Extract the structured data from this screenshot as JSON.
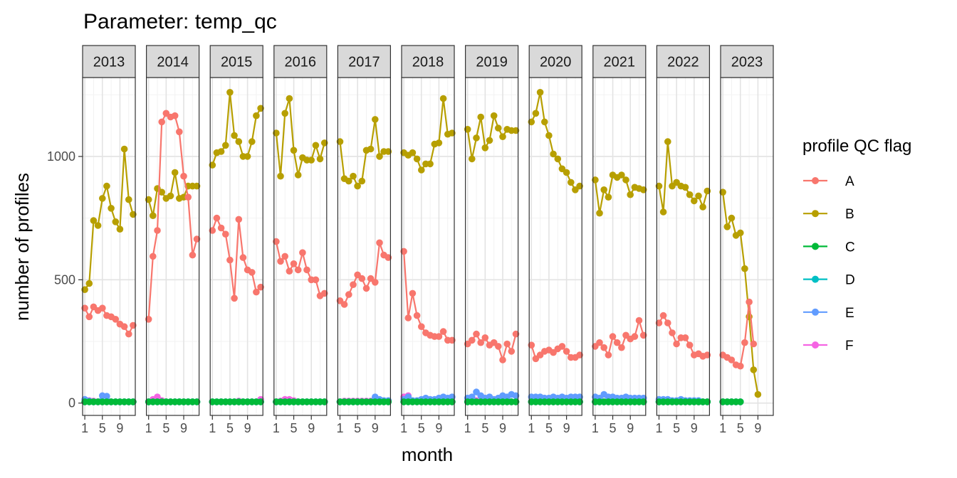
{
  "chart_data": {
    "type": "line",
    "title": "Parameter:  temp_qc",
    "xlabel": "month",
    "ylabel": "number of profiles",
    "ylim": [
      -50,
      1320
    ],
    "xlim": [
      0.5,
      12.5
    ],
    "y_ticks": [
      0,
      500,
      1000
    ],
    "y_tick_labels": [
      "0",
      "500",
      "1000"
    ],
    "x_ticks": [
      1,
      5,
      9
    ],
    "x_tick_labels": [
      "1",
      "5",
      "9"
    ],
    "legend": {
      "title": "profile QC flag",
      "position": "right",
      "entries": [
        "A",
        "B",
        "C",
        "D",
        "E",
        "F"
      ]
    },
    "colors": {
      "A": "#F8766D",
      "B": "#B79F00",
      "C": "#00BA38",
      "D": "#00BFC4",
      "E": "#619CFF",
      "F": "#F564E3"
    },
    "panels": [
      {
        "year": "2013",
        "series": {
          "A": [
            385,
            350,
            390,
            375,
            385,
            355,
            350,
            340,
            320,
            310,
            280,
            315
          ],
          "B": [
            460,
            485,
            740,
            720,
            830,
            880,
            790,
            735,
            705,
            1030,
            825,
            765
          ],
          "C": [
            5,
            5,
            5,
            5,
            5,
            5,
            5,
            5,
            5,
            5,
            5,
            5
          ],
          "D": [
            5,
            5,
            5,
            5,
            5,
            5,
            5,
            5,
            5,
            5,
            5,
            5
          ],
          "E": [
            15,
            8,
            5,
            5,
            30,
            28,
            5,
            5,
            5,
            5,
            5,
            5
          ],
          "F": [
            5,
            10,
            8,
            5,
            5,
            5,
            5,
            5,
            5,
            5,
            5,
            5
          ]
        }
      },
      {
        "year": "2014",
        "series": {
          "A": [
            340,
            595,
            700,
            1140,
            1175,
            1160,
            1165,
            1100,
            920,
            835,
            600,
            665
          ],
          "B": [
            825,
            760,
            870,
            855,
            830,
            840,
            935,
            830,
            835,
            880,
            880,
            880
          ],
          "C": [
            5,
            5,
            5,
            5,
            5,
            5,
            5,
            5,
            5,
            5,
            5,
            5
          ],
          "D": [
            5,
            5,
            5,
            5,
            5,
            5,
            5,
            5,
            5,
            5,
            5,
            5
          ],
          "E": [
            5,
            5,
            5,
            5,
            5,
            5,
            5,
            5,
            5,
            5,
            5,
            5
          ],
          "F": [
            5,
            15,
            25,
            10,
            5,
            5,
            5,
            5,
            5,
            5,
            5,
            5
          ]
        }
      },
      {
        "year": "2015",
        "series": {
          "A": [
            700,
            750,
            710,
            685,
            580,
            425,
            745,
            590,
            540,
            530,
            450,
            470
          ],
          "B": [
            965,
            1015,
            1020,
            1045,
            1260,
            1085,
            1060,
            1000,
            1000,
            1060,
            1165,
            1195
          ],
          "C": [
            5,
            5,
            5,
            5,
            5,
            5,
            5,
            5,
            5,
            5,
            5,
            5
          ],
          "D": [
            5,
            5,
            5,
            5,
            5,
            5,
            5,
            5,
            5,
            5,
            5,
            5
          ],
          "E": [
            5,
            5,
            5,
            5,
            5,
            5,
            5,
            5,
            5,
            5,
            5,
            5
          ],
          "F": [
            5,
            5,
            5,
            5,
            5,
            5,
            8,
            5,
            5,
            5,
            5,
            15
          ]
        }
      },
      {
        "year": "2016",
        "series": {
          "A": [
            655,
            575,
            595,
            535,
            565,
            540,
            610,
            540,
            500,
            500,
            435,
            445
          ],
          "B": [
            1095,
            920,
            1175,
            1235,
            1025,
            925,
            995,
            985,
            985,
            1045,
            990,
            1055
          ],
          "C": [
            5,
            5,
            5,
            5,
            5,
            5,
            5,
            5,
            5,
            5,
            5,
            5
          ],
          "D": [
            5,
            5,
            5,
            5,
            5,
            5,
            5,
            5,
            5,
            5,
            5,
            5
          ],
          "E": [
            5,
            5,
            5,
            5,
            5,
            5,
            5,
            5,
            5,
            5,
            5,
            5
          ],
          "F": [
            5,
            8,
            15,
            15,
            10,
            5,
            5,
            5,
            5,
            5,
            5,
            5
          ]
        }
      },
      {
        "year": "2017",
        "series": {
          "A": [
            415,
            400,
            440,
            480,
            520,
            505,
            465,
            505,
            490,
            650,
            600,
            590
          ],
          "B": [
            1060,
            910,
            900,
            920,
            880,
            900,
            1025,
            1030,
            1150,
            1000,
            1020,
            1020
          ],
          "C": [
            5,
            5,
            5,
            5,
            5,
            5,
            5,
            5,
            5,
            5,
            5,
            5
          ],
          "D": [
            5,
            5,
            5,
            5,
            5,
            5,
            5,
            5,
            5,
            5,
            5,
            5
          ],
          "E": [
            5,
            5,
            5,
            5,
            5,
            5,
            5,
            5,
            25,
            15,
            10,
            10
          ],
          "F": [
            5,
            8,
            8,
            8,
            8,
            8,
            8,
            8,
            8,
            8,
            8,
            8
          ]
        }
      },
      {
        "year": "2018",
        "series": {
          "A": [
            615,
            345,
            445,
            355,
            310,
            285,
            275,
            270,
            270,
            290,
            255,
            255
          ],
          "B": [
            1015,
            1005,
            1015,
            990,
            945,
            970,
            970,
            1050,
            1055,
            1235,
            1090,
            1095
          ],
          "C": [
            5,
            5,
            5,
            5,
            5,
            5,
            5,
            5,
            5,
            5,
            5,
            5
          ],
          "D": [
            5,
            5,
            5,
            5,
            5,
            5,
            5,
            5,
            5,
            5,
            5,
            5
          ],
          "E": [
            15,
            25,
            10,
            10,
            15,
            20,
            15,
            15,
            20,
            25,
            20,
            25
          ],
          "F": [
            25,
            30,
            5,
            5,
            5,
            5,
            5,
            5,
            5,
            5,
            5,
            5
          ]
        }
      },
      {
        "year": "2019",
        "series": {
          "A": [
            240,
            255,
            280,
            245,
            265,
            235,
            245,
            230,
            175,
            240,
            210,
            280
          ],
          "B": [
            1110,
            990,
            1075,
            1160,
            1035,
            1065,
            1165,
            1115,
            1080,
            1110,
            1105,
            1105
          ],
          "C": [
            5,
            5,
            5,
            5,
            5,
            5,
            5,
            5,
            5,
            5,
            5,
            5
          ],
          "D": [
            5,
            5,
            5,
            5,
            5,
            5,
            5,
            5,
            5,
            5,
            5,
            5
          ],
          "E": [
            20,
            25,
            45,
            30,
            20,
            25,
            15,
            20,
            30,
            25,
            35,
            30
          ],
          "F": [
            5,
            5,
            10,
            5,
            5,
            5,
            5,
            5,
            5,
            5,
            5,
            5
          ]
        }
      },
      {
        "year": "2020",
        "series": {
          "A": [
            235,
            180,
            195,
            210,
            215,
            205,
            220,
            230,
            210,
            185,
            185,
            195
          ],
          "B": [
            1140,
            1175,
            1260,
            1140,
            1085,
            1010,
            990,
            950,
            935,
            895,
            865,
            880
          ],
          "C": [
            5,
            5,
            5,
            5,
            5,
            5,
            5,
            5,
            5,
            5,
            5,
            5
          ],
          "D": [
            5,
            5,
            5,
            5,
            5,
            5,
            5,
            5,
            5,
            5,
            5,
            5
          ],
          "E": [
            25,
            25,
            25,
            20,
            20,
            25,
            20,
            25,
            20,
            25,
            25,
            25
          ],
          "F": [
            5,
            5,
            5,
            5,
            5,
            5,
            5,
            5,
            5,
            5,
            5,
            5
          ]
        }
      },
      {
        "year": "2021",
        "series": {
          "A": [
            230,
            245,
            225,
            195,
            270,
            245,
            225,
            275,
            260,
            270,
            335,
            275
          ],
          "B": [
            905,
            770,
            865,
            835,
            925,
            915,
            925,
            905,
            845,
            875,
            870,
            865
          ],
          "C": [
            5,
            5,
            5,
            5,
            5,
            5,
            5,
            5,
            5,
            5,
            5,
            5
          ],
          "D": [
            5,
            5,
            5,
            5,
            5,
            5,
            5,
            5,
            5,
            5,
            5,
            5
          ],
          "E": [
            25,
            20,
            35,
            25,
            25,
            20,
            20,
            25,
            20,
            20,
            20,
            20
          ],
          "F": [
            5,
            5,
            5,
            5,
            5,
            5,
            5,
            5,
            5,
            5,
            5,
            5
          ]
        }
      },
      {
        "year": "2022",
        "series": {
          "A": [
            325,
            355,
            325,
            285,
            240,
            265,
            265,
            235,
            195,
            200,
            190,
            195
          ],
          "B": [
            880,
            775,
            1060,
            880,
            895,
            880,
            875,
            845,
            820,
            840,
            795,
            860
          ],
          "C": [
            5,
            5,
            5,
            5,
            5,
            5,
            5,
            5,
            5,
            5,
            5,
            5
          ],
          "D": [
            5,
            5,
            5,
            5,
            5,
            5,
            5,
            5,
            5,
            5,
            5,
            5
          ],
          "E": [
            15,
            15,
            15,
            10,
            10,
            15,
            10,
            10,
            10,
            10,
            5,
            5
          ],
          "F": [
            5,
            5,
            5,
            5,
            5,
            5,
            5,
            5,
            5,
            5,
            5,
            5
          ]
        }
      },
      {
        "year": "2023",
        "series": {
          "A": [
            195,
            185,
            175,
            155,
            150,
            245,
            410,
            240,
            null
          ],
          "B": [
            855,
            715,
            750,
            680,
            690,
            545,
            350,
            135,
            35
          ],
          "C": [
            5,
            5,
            5,
            5,
            5,
            null,
            null,
            null,
            null
          ],
          "D": [
            5,
            5,
            5,
            5,
            5,
            null,
            null,
            null,
            null
          ],
          "E": [
            5,
            5,
            5,
            5,
            5,
            null,
            null,
            null,
            null
          ],
          "F": [
            5,
            5,
            5,
            5,
            5,
            null,
            null,
            null,
            null
          ]
        }
      }
    ]
  }
}
